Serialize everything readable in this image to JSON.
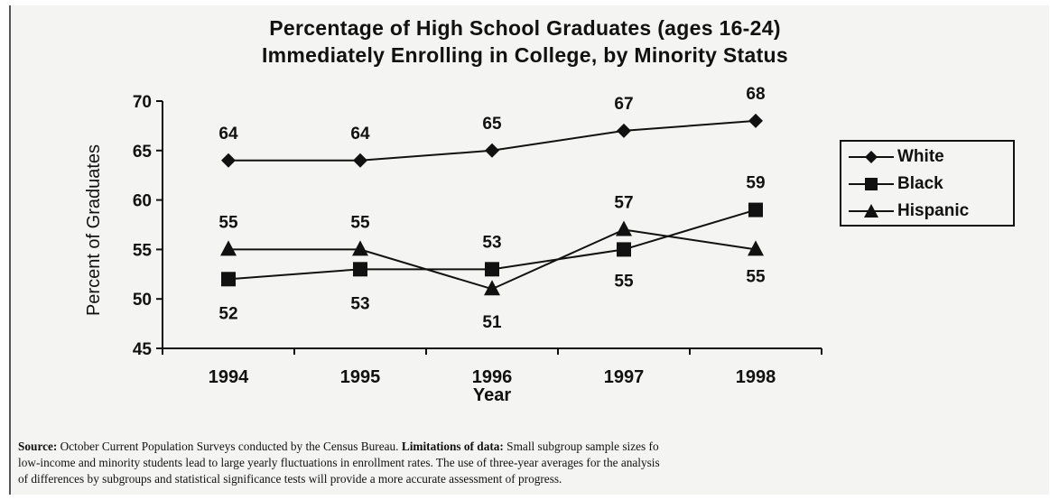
{
  "chart_data": {
    "type": "line",
    "title_lines": [
      "Percentage of High School Graduates (ages 16-24)",
      "Immediately Enrolling in College, by Minority Status"
    ],
    "xlabel": "Year",
    "ylabel": "Percent of Graduates",
    "categories": [
      "1994",
      "1995",
      "1996",
      "1997",
      "1998"
    ],
    "ylim": [
      45,
      70
    ],
    "yticks": [
      45,
      50,
      55,
      60,
      65,
      70
    ],
    "grid": false,
    "legend_position": "right",
    "series": [
      {
        "name": "White",
        "marker": "diamond",
        "values": [
          64,
          64,
          65,
          67,
          68
        ],
        "labels": [
          "64",
          "64",
          "65",
          "67",
          "68"
        ]
      },
      {
        "name": "Black",
        "marker": "square",
        "values": [
          52,
          53,
          53,
          55,
          59
        ],
        "labels": [
          "52",
          "53",
          "53",
          "55",
          "59"
        ]
      },
      {
        "name": "Hispanic",
        "marker": "triangle",
        "values": [
          55,
          55,
          51,
          57,
          55
        ],
        "labels": [
          "55",
          "55",
          "51",
          "57",
          "55"
        ]
      }
    ]
  },
  "source": {
    "line1_prefix": "Source:",
    "line1_text": " October Current Population Surveys conducted by the Census Bureau.  ",
    "line1_bold2": "Limitations of data:",
    "line1_tail": " Small subgroup sample sizes fo",
    "line2": "low-income and minority students lead to large yearly fluctuations in enrollment rates.  The use of three-year averages for the analysis",
    "line3": "of differences by subgroups and statistical significance tests will provide a more accurate assessment of progress."
  }
}
